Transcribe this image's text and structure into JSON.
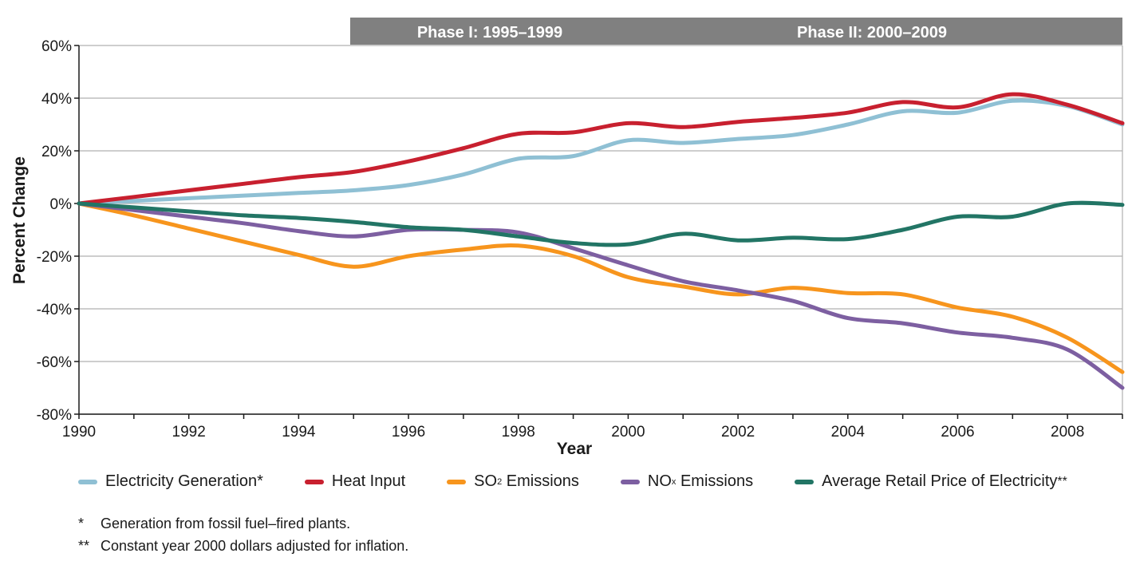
{
  "chart_data": {
    "type": "line",
    "phases": [
      {
        "label": "Phase I: 1995–1999",
        "start": 1995,
        "end": 2000
      },
      {
        "label": "Phase II: 2000–2009",
        "start": 2000,
        "end": 2009
      }
    ],
    "xlabel": "Year",
    "ylabel": "Percent Change",
    "xlim": [
      1990,
      2009
    ],
    "ylim": [
      -80,
      60
    ],
    "x_ticks": [
      "1990",
      "1992",
      "1994",
      "1996",
      "1998",
      "2000",
      "2002",
      "2004",
      "2006",
      "2008"
    ],
    "y_ticks": [
      "60%",
      "40%",
      "20%",
      "0%",
      "-20%",
      "-40%",
      "-60%",
      "-80%"
    ],
    "grid": true,
    "x": [
      1990,
      1991,
      1992,
      1993,
      1994,
      1995,
      1996,
      1997,
      1998,
      1999,
      2000,
      2001,
      2002,
      2003,
      2004,
      2005,
      2006,
      2007,
      2008,
      2009
    ],
    "series": [
      {
        "name": "Electricity Generation*",
        "color": "#8fc0d4",
        "values": [
          0,
          1,
          2,
          3,
          4,
          5,
          7,
          11,
          17,
          18,
          24,
          23,
          24.5,
          26,
          30,
          35,
          34.5,
          39,
          37,
          30
        ]
      },
      {
        "name": "Heat Input",
        "color": "#c8202f",
        "values": [
          0,
          2.5,
          5,
          7.5,
          10,
          12,
          16,
          21,
          26.5,
          27,
          30.5,
          29,
          31,
          32.5,
          34.5,
          38.5,
          36.5,
          41.5,
          37.5,
          30.5
        ]
      },
      {
        "name": "SO2 Emissions",
        "color": "#f7951d",
        "values": [
          0,
          -4.5,
          -9.5,
          -14.5,
          -19.5,
          -24,
          -20,
          -17.5,
          -16,
          -20,
          -28,
          -31.5,
          -34.5,
          -32,
          -34,
          -34.5,
          -39.5,
          -43,
          -51,
          -64
        ]
      },
      {
        "name": "NOx Emissions",
        "color": "#7d5fa1",
        "values": [
          0,
          -2.5,
          -5,
          -7.5,
          -10.5,
          -12.5,
          -10,
          -10,
          -11,
          -17,
          -23.5,
          -29.5,
          -33,
          -37,
          -43.5,
          -45.5,
          -49,
          -51,
          -55.5,
          -70
        ]
      },
      {
        "name": "Average Retail Price of Electricity**",
        "color": "#227565",
        "values": [
          0,
          -1.5,
          -3,
          -4.5,
          -5.5,
          -7,
          -9,
          -10,
          -12.5,
          -15,
          -15.5,
          -11.5,
          -14,
          -13,
          -13.5,
          -10,
          -5,
          -5,
          0,
          -0.5
        ]
      }
    ],
    "legend": [
      {
        "label": "Electricity Generation*",
        "color": "#8fc0d4"
      },
      {
        "label": "Heat Input",
        "color": "#c8202f"
      },
      {
        "label": "SO",
        "sub": "2",
        "suffix": " Emissions",
        "color": "#f7951d"
      },
      {
        "label": "NO",
        "sub": "x",
        "suffix": " Emissions",
        "color": "#7d5fa1"
      },
      {
        "label": "Average Retail Price of Electricity",
        "suffix": "**",
        "color": "#227565"
      }
    ],
    "legend_position": "bottom",
    "phase_bar_color": "#808080",
    "grid_color": "#b0b0b0"
  },
  "notes": [
    {
      "mark": "*",
      "text": "Generation from fossil fuel–fired plants."
    },
    {
      "mark": "**",
      "text": "Constant year 2000 dollars adjusted for inflation."
    }
  ]
}
